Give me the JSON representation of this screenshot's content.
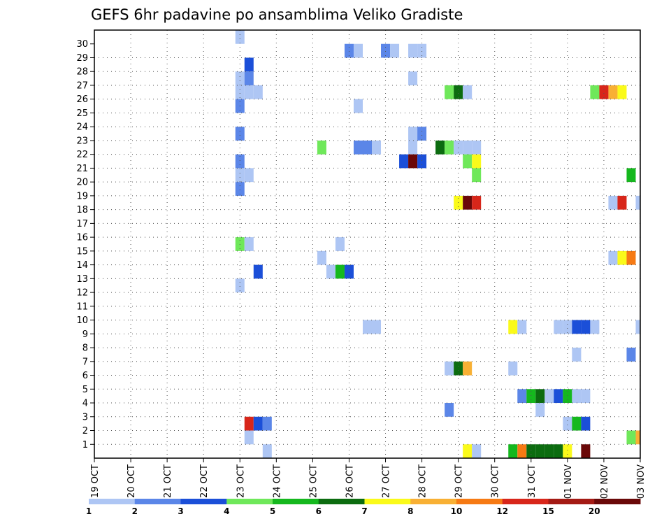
{
  "chart_data": {
    "type": "heatmap",
    "title": "GEFS 6hr padavine po ansamblima Veliko Gradiste",
    "xlabel": "",
    "ylabel": "",
    "x_ticks": [
      "19 OCT",
      "20 OCT",
      "21 OCT",
      "22 OCT",
      "23 OCT",
      "24 OCT",
      "25 OCT",
      "26 OCT",
      "27 OCT",
      "28 OCT",
      "29 OCT",
      "30 OCT",
      "31 OCT",
      "01 NOV",
      "02 NOV",
      "03 NOV"
    ],
    "y_ticks": [
      "1",
      "2",
      "3",
      "4",
      "5",
      "6",
      "7",
      "8",
      "9",
      "10",
      "11",
      "12",
      "13",
      "14",
      "15",
      "16",
      "17",
      "18",
      "19",
      "20",
      "21",
      "22",
      "23",
      "24",
      "25",
      "26",
      "27",
      "28",
      "29",
      "30"
    ],
    "xlim_days": [
      0,
      15
    ],
    "ylim_member": [
      0,
      30
    ],
    "grid": true,
    "colorbar": {
      "placement": "bottom",
      "labels": [
        "1",
        "2",
        "3",
        "4",
        "5",
        "6",
        "7",
        "8",
        "10",
        "12",
        "15",
        "20"
      ],
      "colors": [
        "#aec6f4",
        "#5b86e8",
        "#1b4fd8",
        "#6fe85a",
        "#15b81e",
        "#0c6c10",
        "#fafa1a",
        "#f8b034",
        "#f67a14",
        "#d8261a",
        "#a41a14",
        "#6a0808"
      ]
    },
    "cells": [
      {
        "t": 4.0,
        "m": 30,
        "c": 0
      },
      {
        "t": 7.0,
        "m": 29,
        "c": 1
      },
      {
        "t": 7.25,
        "m": 29,
        "c": 0
      },
      {
        "t": 8.0,
        "m": 29,
        "c": 1
      },
      {
        "t": 8.25,
        "m": 29,
        "c": 0
      },
      {
        "t": 8.75,
        "m": 29,
        "c": 0
      },
      {
        "t": 9.0,
        "m": 29,
        "c": 0
      },
      {
        "t": 4.25,
        "m": 28,
        "c": 2
      },
      {
        "t": 4.0,
        "m": 27,
        "c": 0
      },
      {
        "t": 4.25,
        "m": 27,
        "c": 1
      },
      {
        "t": 8.75,
        "m": 27,
        "c": 0
      },
      {
        "t": 4.0,
        "m": 26,
        "c": 0
      },
      {
        "t": 4.25,
        "m": 26,
        "c": 0
      },
      {
        "t": 4.5,
        "m": 26,
        "c": 0
      },
      {
        "t": 9.75,
        "m": 26,
        "c": 3
      },
      {
        "t": 10.0,
        "m": 26,
        "c": 5
      },
      {
        "t": 10.25,
        "m": 26,
        "c": 0
      },
      {
        "t": 13.75,
        "m": 26,
        "c": 3
      },
      {
        "t": 14.0,
        "m": 26,
        "c": 9
      },
      {
        "t": 14.25,
        "m": 26,
        "c": 7
      },
      {
        "t": 14.5,
        "m": 26,
        "c": 6
      },
      {
        "t": 4.0,
        "m": 25,
        "c": 1
      },
      {
        "t": 7.25,
        "m": 25,
        "c": 0
      },
      {
        "t": 4.0,
        "m": 23,
        "c": 1
      },
      {
        "t": 8.75,
        "m": 23,
        "c": 0
      },
      {
        "t": 9.0,
        "m": 23,
        "c": 1
      },
      {
        "t": 6.25,
        "m": 22,
        "c": 3
      },
      {
        "t": 7.25,
        "m": 22,
        "c": 1
      },
      {
        "t": 7.5,
        "m": 22,
        "c": 1
      },
      {
        "t": 7.75,
        "m": 22,
        "c": 0
      },
      {
        "t": 8.75,
        "m": 22,
        "c": 0
      },
      {
        "t": 9.5,
        "m": 22,
        "c": 5
      },
      {
        "t": 9.75,
        "m": 22,
        "c": 3
      },
      {
        "t": 10.0,
        "m": 22,
        "c": 0
      },
      {
        "t": 10.25,
        "m": 22,
        "c": 0
      },
      {
        "t": 10.5,
        "m": 22,
        "c": 0
      },
      {
        "t": 4.0,
        "m": 21,
        "c": 1
      },
      {
        "t": 8.5,
        "m": 21,
        "c": 2
      },
      {
        "t": 8.75,
        "m": 21,
        "c": 11
      },
      {
        "t": 9.0,
        "m": 21,
        "c": 2
      },
      {
        "t": 10.25,
        "m": 21,
        "c": 3
      },
      {
        "t": 10.5,
        "m": 21,
        "c": 6
      },
      {
        "t": 4.0,
        "m": 20,
        "c": 0
      },
      {
        "t": 4.25,
        "m": 20,
        "c": 0
      },
      {
        "t": 10.5,
        "m": 20,
        "c": 3
      },
      {
        "t": 14.75,
        "m": 20,
        "c": 4
      },
      {
        "t": 4.0,
        "m": 19,
        "c": 1
      },
      {
        "t": 10.0,
        "m": 18,
        "c": 6
      },
      {
        "t": 10.25,
        "m": 18,
        "c": 11
      },
      {
        "t": 10.5,
        "m": 18,
        "c": 9
      },
      {
        "t": 14.25,
        "m": 18,
        "c": 0
      },
      {
        "t": 14.5,
        "m": 18,
        "c": 9
      },
      {
        "t": 15.0,
        "m": 18,
        "c": 0
      },
      {
        "t": 4.0,
        "m": 15,
        "c": 3
      },
      {
        "t": 4.25,
        "m": 15,
        "c": 0
      },
      {
        "t": 6.75,
        "m": 15,
        "c": 0
      },
      {
        "t": 6.25,
        "m": 14,
        "c": 0
      },
      {
        "t": 14.25,
        "m": 14,
        "c": 0
      },
      {
        "t": 14.5,
        "m": 14,
        "c": 6
      },
      {
        "t": 14.75,
        "m": 14,
        "c": 8
      },
      {
        "t": 4.5,
        "m": 13,
        "c": 2
      },
      {
        "t": 6.5,
        "m": 13,
        "c": 0
      },
      {
        "t": 6.75,
        "m": 13,
        "c": 4
      },
      {
        "t": 7.0,
        "m": 13,
        "c": 2
      },
      {
        "t": 4.0,
        "m": 12,
        "c": 0
      },
      {
        "t": 7.5,
        "m": 9,
        "c": 0
      },
      {
        "t": 7.75,
        "m": 9,
        "c": 0
      },
      {
        "t": 11.5,
        "m": 9,
        "c": 6
      },
      {
        "t": 11.75,
        "m": 9,
        "c": 0
      },
      {
        "t": 12.75,
        "m": 9,
        "c": 0
      },
      {
        "t": 13.0,
        "m": 9,
        "c": 0
      },
      {
        "t": 13.25,
        "m": 9,
        "c": 2
      },
      {
        "t": 13.5,
        "m": 9,
        "c": 2
      },
      {
        "t": 13.75,
        "m": 9,
        "c": 0
      },
      {
        "t": 15.0,
        "m": 9,
        "c": 0
      },
      {
        "t": 13.25,
        "m": 7,
        "c": 0
      },
      {
        "t": 14.75,
        "m": 7,
        "c": 1
      },
      {
        "t": 9.75,
        "m": 6,
        "c": 0
      },
      {
        "t": 10.0,
        "m": 6,
        "c": 5
      },
      {
        "t": 10.25,
        "m": 6,
        "c": 7
      },
      {
        "t": 11.5,
        "m": 6,
        "c": 0
      },
      {
        "t": 11.75,
        "m": 4,
        "c": 1
      },
      {
        "t": 12.0,
        "m": 4,
        "c": 4
      },
      {
        "t": 12.25,
        "m": 4,
        "c": 5
      },
      {
        "t": 12.5,
        "m": 4,
        "c": 0
      },
      {
        "t": 12.75,
        "m": 4,
        "c": 2
      },
      {
        "t": 13.0,
        "m": 4,
        "c": 4
      },
      {
        "t": 13.25,
        "m": 4,
        "c": 0
      },
      {
        "t": 13.5,
        "m": 4,
        "c": 0
      },
      {
        "t": 9.75,
        "m": 3,
        "c": 1
      },
      {
        "t": 12.25,
        "m": 3,
        "c": 0
      },
      {
        "t": 4.25,
        "m": 2,
        "c": 9
      },
      {
        "t": 4.5,
        "m": 2,
        "c": 2
      },
      {
        "t": 4.75,
        "m": 2,
        "c": 1
      },
      {
        "t": 13.0,
        "m": 2,
        "c": 0
      },
      {
        "t": 13.25,
        "m": 2,
        "c": 4
      },
      {
        "t": 13.5,
        "m": 2,
        "c": 2
      },
      {
        "t": 4.25,
        "m": 1,
        "c": 0
      },
      {
        "t": 14.75,
        "m": 1,
        "c": 3
      },
      {
        "t": 15.0,
        "m": 1,
        "c": 7
      },
      {
        "t": 4.75,
        "m": 0,
        "c": 0
      },
      {
        "t": 10.25,
        "m": 0,
        "c": 6
      },
      {
        "t": 10.5,
        "m": 0,
        "c": 0
      },
      {
        "t": 11.5,
        "m": 0,
        "c": 4
      },
      {
        "t": 11.75,
        "m": 0,
        "c": 8
      },
      {
        "t": 12.0,
        "m": 0,
        "c": 5
      },
      {
        "t": 12.25,
        "m": 0,
        "c": 5
      },
      {
        "t": 12.5,
        "m": 0,
        "c": 5
      },
      {
        "t": 12.75,
        "m": 0,
        "c": 5
      },
      {
        "t": 13.0,
        "m": 0,
        "c": 6
      },
      {
        "t": 13.5,
        "m": 0,
        "c": 11
      }
    ]
  }
}
